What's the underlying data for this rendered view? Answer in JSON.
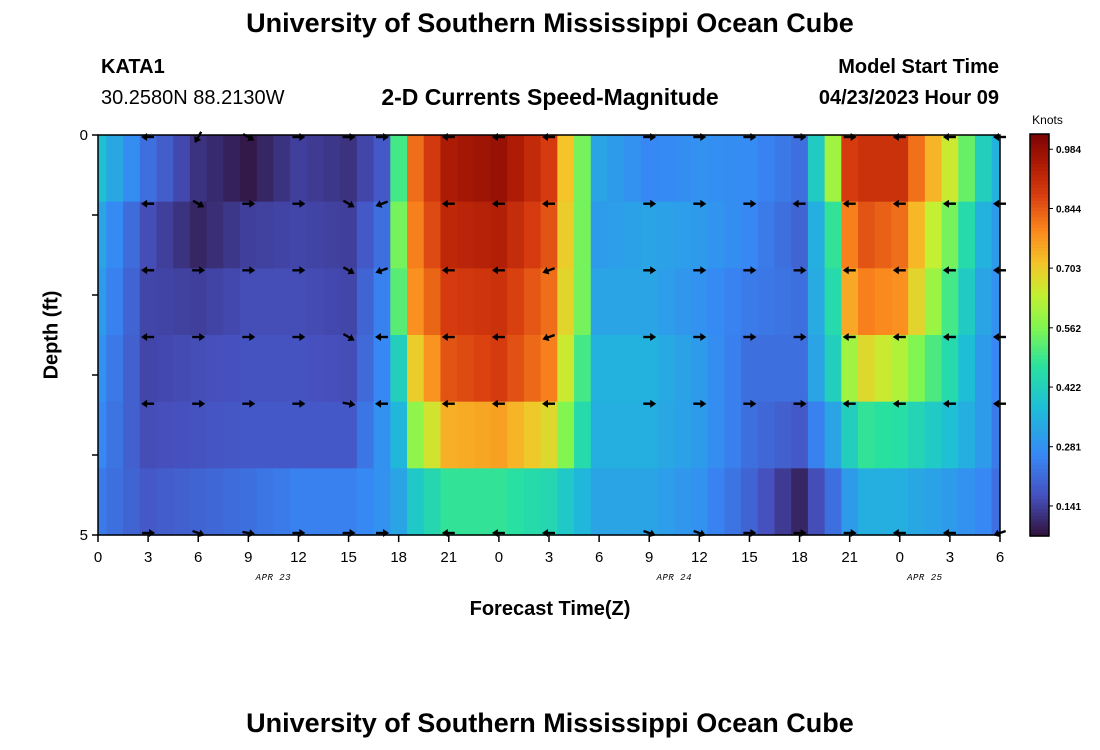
{
  "header": {
    "title": "University of Southern Mississippi Ocean Cube",
    "station_id": "KATA1",
    "coords": "30.2580N  88.2130W",
    "subtitle": "2-D Currents Speed-Magnitude",
    "model_start_label": "Model Start Time",
    "model_start_value": "04/23/2023 Hour 09"
  },
  "footer": {
    "title": "University of Southern Mississippi Ocean Cube"
  },
  "chart_data": {
    "type": "heatmap",
    "title": "2-D Currents Speed-Magnitude",
    "xlabel": "Forecast Time(Z)",
    "ylabel": "Depth (ft)",
    "y_tick_labels": [
      "0",
      "5"
    ],
    "ylim": [
      0,
      5
    ],
    "x_tick_labels": [
      "0",
      "3",
      "6",
      "9",
      "12",
      "15",
      "18",
      "21",
      "0",
      "3",
      "6",
      "9",
      "12",
      "15",
      "18",
      "21",
      "0",
      "3",
      "6"
    ],
    "date_labels": [
      {
        "label": "APR 23",
        "tick_index": 3.5
      },
      {
        "label": "APR 24",
        "tick_index": 11.5
      },
      {
        "label": "APR 25",
        "tick_index": 16.5
      }
    ],
    "colorbar": {
      "unit": "Knots",
      "min": 0.07,
      "max": 1.02,
      "ticks": [
        "0.984",
        "0.844",
        "0.703",
        "0.562",
        "0.422",
        "0.281",
        "0.141"
      ],
      "tick_values": [
        0.984,
        0.844,
        0.703,
        0.562,
        0.422,
        0.281,
        0.141
      ]
    },
    "forecast_hours": [
      0,
      1,
      2,
      3,
      4,
      5,
      6,
      7,
      8,
      9,
      10,
      11,
      12,
      13,
      14,
      15,
      16,
      17,
      18,
      19,
      20,
      21,
      22,
      23,
      24,
      25,
      26,
      27,
      28,
      29,
      30,
      31,
      32,
      33,
      34,
      35,
      36,
      37,
      38,
      39,
      40,
      41,
      42,
      43,
      44,
      45,
      46,
      47,
      48,
      49,
      50,
      51,
      52,
      53,
      54
    ],
    "layer_anchor_hours": [
      0,
      3,
      6,
      9,
      12,
      15,
      17,
      18,
      19,
      21,
      24,
      27,
      29,
      30,
      33,
      36,
      39,
      42,
      44,
      45,
      46,
      48,
      51,
      53,
      54
    ],
    "speed_layers": [
      [
        0.38,
        0.22,
        0.12,
        0.08,
        0.14,
        0.12,
        0.18,
        0.5,
        0.82,
        0.95,
        0.98,
        0.88,
        0.55,
        0.32,
        0.26,
        0.28,
        0.27,
        0.22,
        0.6,
        0.88,
        0.9,
        0.9,
        0.65,
        0.42,
        0.35
      ],
      [
        0.32,
        0.16,
        0.1,
        0.14,
        0.15,
        0.14,
        0.22,
        0.55,
        0.8,
        0.92,
        0.94,
        0.85,
        0.55,
        0.3,
        0.32,
        0.3,
        0.26,
        0.2,
        0.48,
        0.8,
        0.85,
        0.82,
        0.55,
        0.35,
        0.3
      ],
      [
        0.3,
        0.15,
        0.14,
        0.16,
        0.16,
        0.15,
        0.25,
        0.52,
        0.78,
        0.88,
        0.9,
        0.82,
        0.55,
        0.32,
        0.32,
        0.28,
        0.24,
        0.22,
        0.45,
        0.75,
        0.8,
        0.78,
        0.5,
        0.32,
        0.28
      ],
      [
        0.28,
        0.15,
        0.16,
        0.17,
        0.17,
        0.16,
        0.26,
        0.42,
        0.7,
        0.85,
        0.88,
        0.8,
        0.5,
        0.35,
        0.35,
        0.3,
        0.22,
        0.22,
        0.42,
        0.6,
        0.68,
        0.62,
        0.45,
        0.3,
        0.26
      ],
      [
        0.26,
        0.16,
        0.17,
        0.18,
        0.18,
        0.18,
        0.28,
        0.36,
        0.58,
        0.74,
        0.76,
        0.68,
        0.45,
        0.34,
        0.34,
        0.3,
        0.22,
        0.18,
        0.32,
        0.42,
        0.48,
        0.46,
        0.38,
        0.3,
        0.24
      ],
      [
        0.24,
        0.18,
        0.2,
        0.22,
        0.25,
        0.25,
        0.28,
        0.32,
        0.4,
        0.48,
        0.48,
        0.44,
        0.36,
        0.32,
        0.32,
        0.28,
        0.2,
        0.1,
        0.22,
        0.3,
        0.34,
        0.34,
        0.3,
        0.26,
        0.22
      ]
    ],
    "vector_columns_hours": [
      3,
      6,
      9,
      12,
      15,
      17,
      21,
      24,
      27,
      33,
      36,
      39,
      42,
      45,
      48,
      51,
      54
    ],
    "vector_angles_deg": [
      [
        180,
        240,
        330,
        0,
        0,
        0,
        180,
        180,
        180,
        0,
        0,
        0,
        0,
        0,
        180,
        180,
        180
      ],
      [
        180,
        330,
        0,
        0,
        330,
        200,
        180,
        180,
        180,
        0,
        0,
        0,
        180,
        180,
        180,
        180,
        180
      ],
      [
        180,
        0,
        0,
        0,
        330,
        200,
        180,
        180,
        200,
        0,
        0,
        0,
        0,
        180,
        180,
        180,
        180
      ],
      [
        180,
        0,
        0,
        0,
        330,
        180,
        180,
        180,
        200,
        0,
        0,
        0,
        0,
        180,
        180,
        180,
        180
      ],
      [
        180,
        0,
        0,
        0,
        350,
        180,
        180,
        180,
        180,
        0,
        0,
        0,
        0,
        180,
        180,
        180,
        180
      ],
      [
        0,
        340,
        350,
        0,
        0,
        0,
        180,
        180,
        180,
        340,
        340,
        0,
        0,
        0,
        180,
        180,
        200
      ]
    ]
  }
}
